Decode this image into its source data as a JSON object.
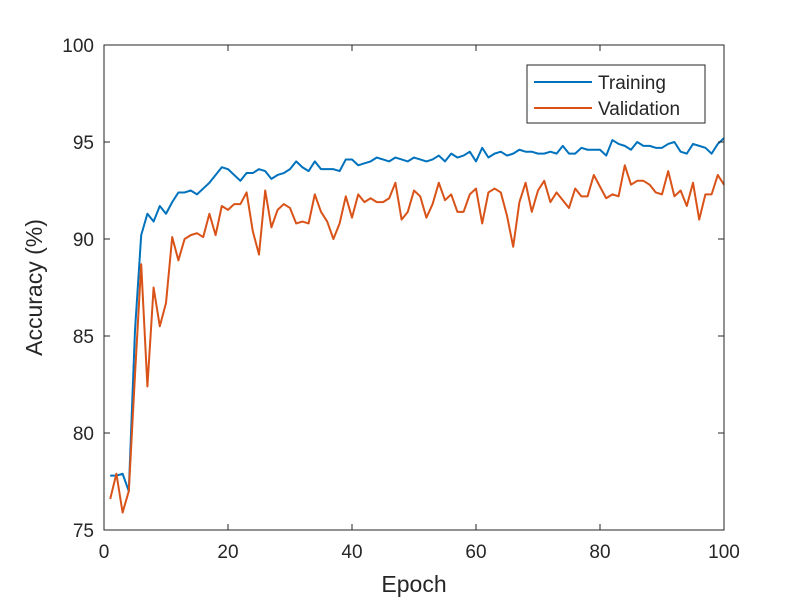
{
  "chart_data": {
    "type": "line",
    "title": "",
    "xlabel": "Epoch",
    "ylabel": "Accuracy (%)",
    "xlim": [
      0,
      100
    ],
    "ylim": [
      75,
      100
    ],
    "xticks": [
      0,
      20,
      40,
      60,
      80,
      100
    ],
    "yticks": [
      75,
      80,
      85,
      90,
      95,
      100
    ],
    "grid": false,
    "box": true,
    "legend": {
      "placement": "top-right",
      "entries": [
        "Training",
        "Validation"
      ]
    },
    "x": [
      1,
      2,
      3,
      4,
      5,
      6,
      7,
      8,
      9,
      10,
      11,
      12,
      13,
      14,
      15,
      16,
      17,
      18,
      19,
      20,
      21,
      22,
      23,
      24,
      25,
      26,
      27,
      28,
      29,
      30,
      31,
      32,
      33,
      34,
      35,
      36,
      37,
      38,
      39,
      40,
      41,
      42,
      43,
      44,
      45,
      46,
      47,
      48,
      49,
      50,
      51,
      52,
      53,
      54,
      55,
      56,
      57,
      58,
      59,
      60,
      61,
      62,
      63,
      64,
      65,
      66,
      67,
      68,
      69,
      70,
      71,
      72,
      73,
      74,
      75,
      76,
      77,
      78,
      79,
      80,
      81,
      82,
      83,
      84,
      85,
      86,
      87,
      88,
      89,
      90,
      91,
      92,
      93,
      94,
      95,
      96,
      97,
      98,
      99,
      100
    ],
    "series": [
      {
        "name": "Training",
        "color": "#0072BD",
        "values": [
          77.8,
          77.8,
          77.9,
          77.0,
          85.3,
          90.2,
          91.3,
          90.9,
          91.7,
          91.3,
          91.9,
          92.4,
          92.4,
          92.5,
          92.3,
          92.6,
          92.9,
          93.3,
          93.7,
          93.6,
          93.3,
          93.0,
          93.4,
          93.4,
          93.6,
          93.5,
          93.1,
          93.3,
          93.4,
          93.6,
          94.0,
          93.7,
          93.5,
          94.0,
          93.6,
          93.6,
          93.6,
          93.5,
          94.1,
          94.1,
          93.8,
          93.9,
          94.0,
          94.2,
          94.1,
          94.0,
          94.2,
          94.1,
          94.0,
          94.2,
          94.1,
          94.0,
          94.1,
          94.3,
          94.0,
          94.4,
          94.2,
          94.3,
          94.5,
          94.0,
          94.7,
          94.2,
          94.4,
          94.5,
          94.3,
          94.4,
          94.6,
          94.5,
          94.5,
          94.4,
          94.4,
          94.5,
          94.4,
          94.8,
          94.4,
          94.4,
          94.7,
          94.6,
          94.6,
          94.6,
          94.3,
          95.1,
          94.9,
          94.8,
          94.6,
          95.0,
          94.8,
          94.8,
          94.7,
          94.7,
          94.9,
          95.0,
          94.5,
          94.4,
          94.9,
          94.8,
          94.7,
          94.4,
          94.9,
          95.2
        ]
      },
      {
        "name": "Validation",
        "color": "#D95319",
        "values": [
          76.6,
          77.9,
          75.9,
          77.0,
          83.0,
          88.7,
          82.4,
          87.5,
          85.5,
          86.7,
          90.1,
          88.9,
          90.0,
          90.2,
          90.3,
          90.1,
          91.3,
          90.2,
          91.7,
          91.5,
          91.8,
          91.8,
          92.4,
          90.4,
          89.2,
          92.5,
          90.6,
          91.5,
          91.8,
          91.6,
          90.8,
          90.9,
          90.8,
          92.3,
          91.4,
          90.9,
          90.0,
          90.8,
          92.2,
          91.1,
          92.3,
          91.9,
          92.1,
          91.9,
          91.9,
          92.1,
          92.9,
          91.0,
          91.4,
          92.5,
          92.2,
          91.1,
          91.8,
          92.9,
          92.0,
          92.3,
          91.4,
          91.4,
          92.3,
          92.6,
          90.8,
          92.4,
          92.6,
          92.4,
          91.2,
          89.6,
          91.9,
          92.9,
          91.4,
          92.5,
          93.0,
          91.9,
          92.4,
          92.0,
          91.6,
          92.6,
          92.2,
          92.2,
          93.3,
          92.7,
          92.1,
          92.3,
          92.2,
          93.8,
          92.8,
          93.0,
          93.0,
          92.8,
          92.4,
          92.3,
          93.5,
          92.2,
          92.5,
          91.7,
          92.9,
          91.0,
          92.3,
          92.3,
          93.3,
          92.8
        ]
      }
    ]
  }
}
